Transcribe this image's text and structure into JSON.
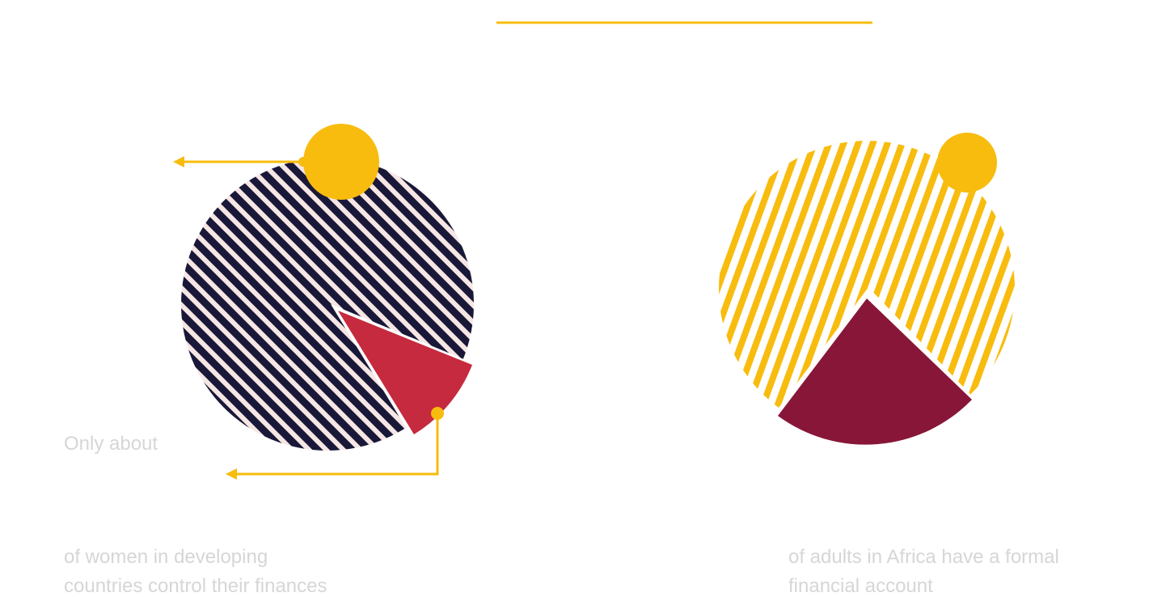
{
  "colors": {
    "accent_yellow": "#F8BC0E",
    "navy": "#1A1838",
    "blush": "#F6E6E4",
    "crimson": "#C62A3E",
    "maroon": "#881639",
    "caption_gray": "#D6D6D6"
  },
  "left_stat": {
    "lead": "Only about",
    "caption_line1": "of women in developing",
    "caption_line2": "countries control their finances"
  },
  "right_stat": {
    "caption_line1": "of adults in Africa have a formal",
    "caption_line2": "financial account"
  }
}
